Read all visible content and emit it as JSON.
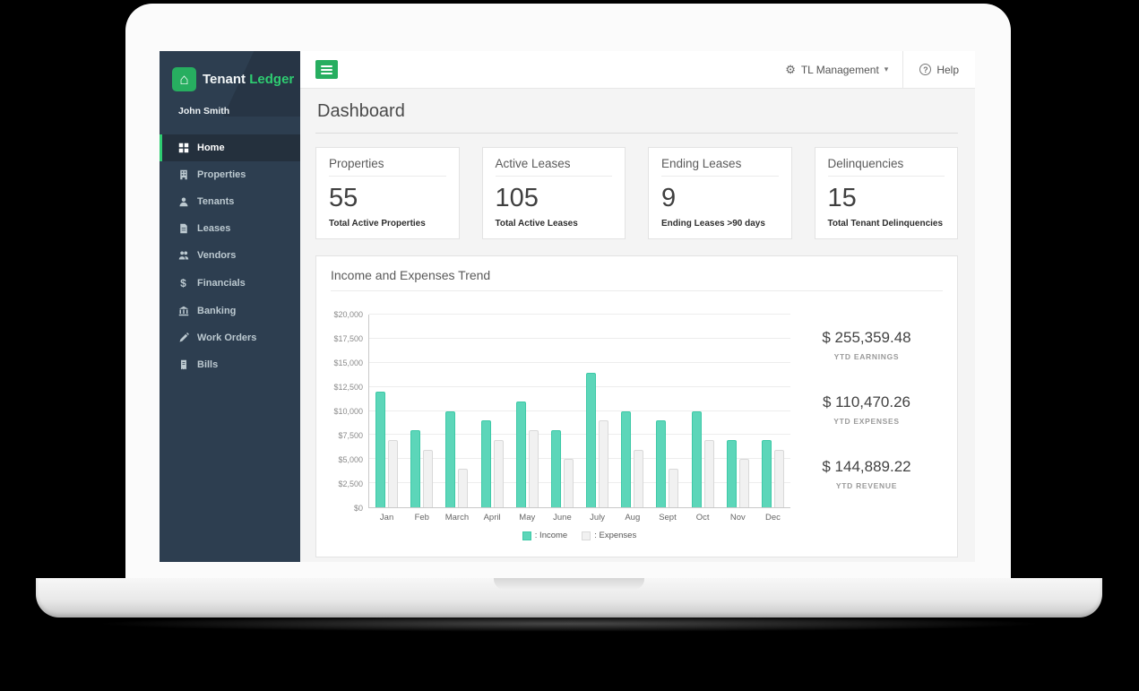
{
  "brand": {
    "logo_text_primary": "Tenant",
    "logo_text_secondary": "Ledger",
    "user_name": "John Smith"
  },
  "icons": {
    "gear": "⚙",
    "caret_down": "▾",
    "help": "?",
    "home_glyph": "⌂",
    "dollar": "$"
  },
  "sidebar": {
    "items": [
      {
        "label": "Home",
        "icon": "grid-icon",
        "active": true
      },
      {
        "label": "Properties",
        "icon": "building-icon",
        "active": false
      },
      {
        "label": "Tenants",
        "icon": "person-icon",
        "active": false
      },
      {
        "label": "Leases",
        "icon": "document-icon",
        "active": false
      },
      {
        "label": "Vendors",
        "icon": "people-icon",
        "active": false
      },
      {
        "label": "Financials",
        "icon": "dollar-icon",
        "active": false,
        "icon_char": "$"
      },
      {
        "label": "Banking",
        "icon": "bank-icon",
        "active": false
      },
      {
        "label": "Work Orders",
        "icon": "pencil-icon",
        "active": false
      },
      {
        "label": "Bills",
        "icon": "invoice-icon",
        "active": false
      }
    ]
  },
  "topbar": {
    "management_label": "TL Management",
    "help_label": "Help"
  },
  "page": {
    "title": "Dashboard"
  },
  "stats": [
    {
      "title": "Properties",
      "value": "55",
      "caption": "Total Active Properties"
    },
    {
      "title": "Active Leases",
      "value": "105",
      "caption": "Total Active Leases"
    },
    {
      "title": "Ending Leases",
      "value": "9",
      "caption": "Ending Leases >90 days"
    },
    {
      "title": "Delinquencies",
      "value": "15",
      "caption": "Total Tenant Delinquencies"
    }
  ],
  "chart_card": {
    "title": "Income and Expenses Trend",
    "totals": [
      {
        "value": "$ 255,359.48",
        "label": "YTD EARNINGS"
      },
      {
        "value": "$ 110,470.26",
        "label": "YTD EXPENSES"
      },
      {
        "value": "$ 144,889.22",
        "label": "YTD REVENUE"
      }
    ],
    "legend": [
      {
        "label": ": Income"
      },
      {
        "label": ": Expenses"
      }
    ]
  },
  "chart_data": {
    "type": "bar",
    "title": "Income and Expenses Trend",
    "categories": [
      "Jan",
      "Feb",
      "March",
      "April",
      "May",
      "June",
      "July",
      "Aug",
      "Sept",
      "Oct",
      "Nov",
      "Dec"
    ],
    "series": [
      {
        "name": "Income",
        "color": "#5cd6b9",
        "border": "#3ec9a7",
        "values": [
          12000,
          8000,
          10000,
          9000,
          11000,
          8000,
          14000,
          10000,
          9000,
          10000,
          7000,
          7000
        ]
      },
      {
        "name": "Expenses",
        "color": "#f1f1f1",
        "border": "#d9d9d9",
        "values": [
          7000,
          6000,
          4000,
          7000,
          8000,
          5000,
          9000,
          6000,
          4000,
          7000,
          5000,
          6000
        ]
      }
    ],
    "xlabel": "",
    "ylabel": "",
    "ylim": [
      0,
      20000
    ],
    "ytick_labels": [
      "$0",
      "$2,500",
      "$5,000",
      "$7,500",
      "$10,000",
      "$12,500",
      "$15,000",
      "$17,500",
      "$20,000"
    ],
    "grid": true,
    "legend_position": "bottom"
  }
}
